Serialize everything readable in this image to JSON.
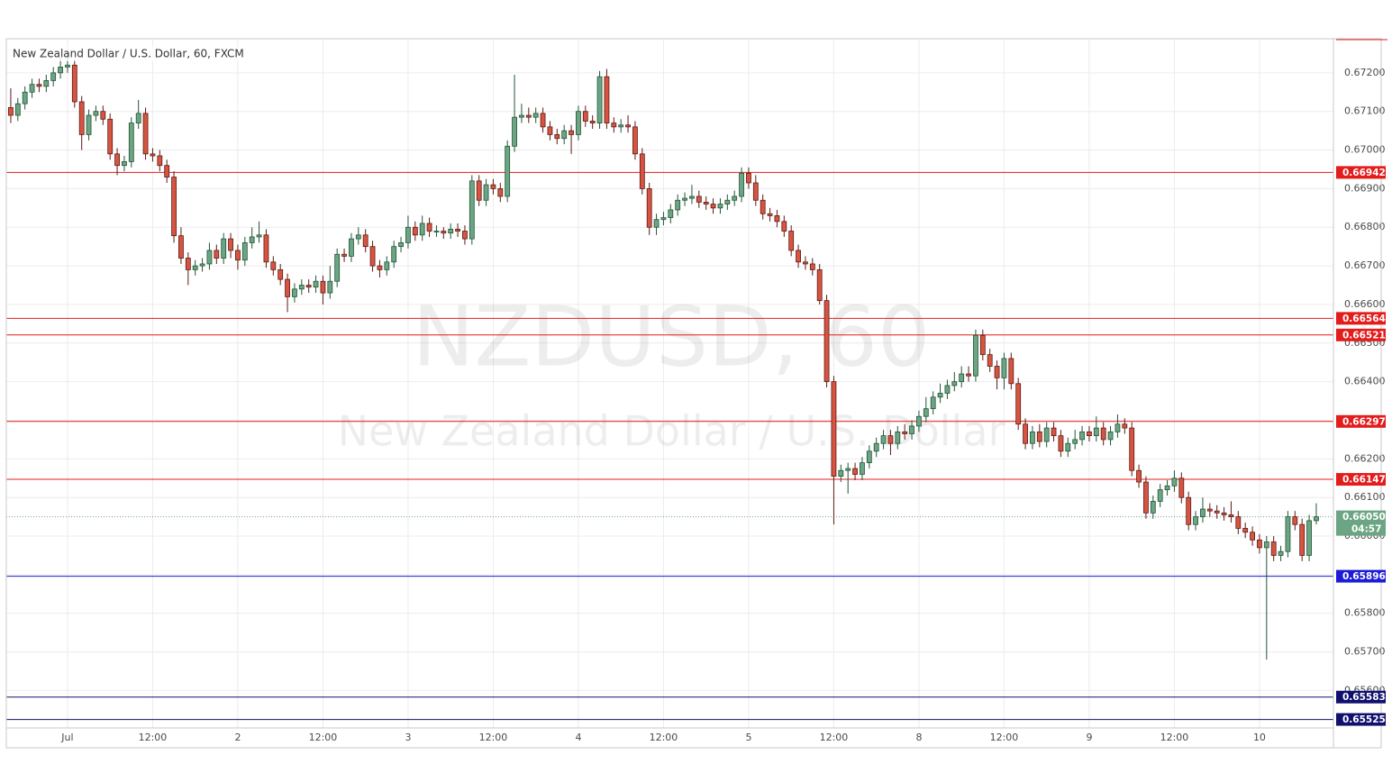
{
  "chart_data": {
    "type": "candlestick",
    "title": "New Zealand Dollar / U.S. Dollar, 60, FXCM",
    "watermark": [
      "NZDUSD, 60",
      "New Zealand Dollar / U.S. Dollar"
    ],
    "up_color": "#6ba583",
    "up_border": "#225437",
    "down_color": "#d75442",
    "down_border": "#5b1a13",
    "grid": true,
    "ylim": [
      0.65503,
      0.67286
    ],
    "yticks": [
      {
        "value": 0.656,
        "label": "0.65600"
      },
      {
        "value": 0.657,
        "label": "0.65700"
      },
      {
        "value": 0.658,
        "label": "0.65800"
      },
      {
        "value": 0.659,
        "label": "0.65900"
      },
      {
        "value": 0.66,
        "label": "0.66000"
      },
      {
        "value": 0.661,
        "label": "0.66100"
      },
      {
        "value": 0.662,
        "label": "0.66200"
      },
      {
        "value": 0.663,
        "label": "0.66300"
      },
      {
        "value": 0.664,
        "label": "0.66400"
      },
      {
        "value": 0.665,
        "label": "0.66500"
      },
      {
        "value": 0.666,
        "label": "0.66600"
      },
      {
        "value": 0.667,
        "label": "0.66700"
      },
      {
        "value": 0.668,
        "label": "0.66800"
      },
      {
        "value": 0.669,
        "label": "0.66900"
      },
      {
        "value": 0.67,
        "label": "0.67000"
      },
      {
        "value": 0.671,
        "label": "0.67100"
      },
      {
        "value": 0.672,
        "label": "0.67200"
      }
    ],
    "hlines": [
      {
        "value": 0.66942,
        "color": "#e31c1c"
      },
      {
        "value": 0.66564,
        "color": "#e31c1c"
      },
      {
        "value": 0.66521,
        "color": "#e31c1c"
      },
      {
        "value": 0.66297,
        "color": "#e31c1c"
      },
      {
        "value": 0.66147,
        "color": "#e31c1c"
      },
      {
        "value": 0.65896,
        "color": "#1c1cd6"
      },
      {
        "value": 0.65583,
        "color": "#10106e"
      },
      {
        "value": 0.65525,
        "color": "#10106e"
      }
    ],
    "last_price": {
      "value": 0.6605,
      "label": "0.66050",
      "color": "#6ba583"
    },
    "countdown": "04:57",
    "categories": [
      null,
      null,
      null,
      null,
      null,
      null,
      null,
      null,
      "Jul",
      null,
      null,
      null,
      null,
      null,
      null,
      null,
      null,
      null,
      null,
      null,
      "12:00",
      null,
      null,
      null,
      null,
      null,
      null,
      null,
      null,
      null,
      null,
      null,
      "2",
      null,
      null,
      null,
      null,
      null,
      null,
      null,
      null,
      null,
      null,
      null,
      "12:00",
      null,
      null,
      null,
      null,
      null,
      null,
      null,
      null,
      null,
      null,
      null,
      "3",
      null,
      null,
      null,
      null,
      null,
      null,
      null,
      null,
      null,
      null,
      null,
      "12:00",
      null,
      null,
      null,
      null,
      null,
      null,
      null,
      null,
      null,
      null,
      null,
      "4",
      null,
      null,
      null,
      null,
      null,
      null,
      null,
      null,
      null,
      null,
      null,
      "12:00",
      null,
      null,
      null,
      null,
      null,
      null,
      null,
      null,
      null,
      null,
      null,
      "5",
      null,
      null,
      null,
      null,
      null,
      null,
      null,
      null,
      null,
      null,
      null,
      "12:00",
      null,
      null,
      null,
      null,
      null,
      null,
      null,
      null,
      null,
      null,
      null,
      "8",
      null,
      null,
      null,
      null,
      null,
      null,
      null,
      null,
      null,
      null,
      null,
      "12:00",
      null,
      null,
      null,
      null,
      null,
      null,
      null,
      null,
      null,
      null,
      null,
      "9",
      null,
      null,
      null,
      null,
      null,
      null,
      null,
      null,
      null,
      null,
      null,
      "12:00",
      null,
      null,
      null,
      null,
      null,
      null,
      null,
      null,
      null,
      null,
      null,
      "10",
      null,
      null,
      null,
      null,
      null,
      null,
      null,
      null
    ],
    "open": [
      0.6711,
      0.6709,
      0.6712,
      0.6715,
      0.6717,
      0.67165,
      0.6718,
      0.672,
      0.67215,
      0.6722,
      0.67125,
      0.6704,
      0.6709,
      0.671,
      0.6708,
      0.6699,
      0.6696,
      0.6697,
      0.6707,
      0.67095,
      0.6699,
      0.66985,
      0.6696,
      0.6693,
      0.66778,
      0.6672,
      0.6669,
      0.667,
      0.66705,
      0.6674,
      0.6672,
      0.6677,
      0.6674,
      0.66715,
      0.6676,
      0.66775,
      0.6678,
      0.6671,
      0.6669,
      0.66665,
      0.6662,
      0.6664,
      0.6665,
      0.66645,
      0.6666,
      0.6663,
      0.6666,
      0.6673,
      0.66725,
      0.6677,
      0.6678,
      0.6675,
      0.667,
      0.6669,
      0.6671,
      0.6675,
      0.6676,
      0.668,
      0.6678,
      0.6681,
      0.6679,
      0.6679,
      0.66785,
      0.66795,
      0.6679,
      0.6677,
      0.6692,
      0.6687,
      0.6691,
      0.669,
      0.6688,
      0.6701,
      0.67085,
      0.6709,
      0.67085,
      0.67095,
      0.6706,
      0.6704,
      0.6703,
      0.6705,
      0.6704,
      0.671,
      0.67075,
      0.6707,
      0.6719,
      0.6707,
      0.6706,
      0.67065,
      0.6706,
      0.6699,
      0.669,
      0.668,
      0.6682,
      0.66825,
      0.66845,
      0.6687,
      0.66875,
      0.6688,
      0.66865,
      0.6686,
      0.6685,
      0.6686,
      0.6687,
      0.6688,
      0.6694,
      0.66915,
      0.6687,
      0.66835,
      0.6683,
      0.66815,
      0.6679,
      0.6674,
      0.6671,
      0.66705,
      0.6669,
      0.6661,
      0.664,
      0.66155,
      0.6617,
      0.66175,
      0.6616,
      0.6619,
      0.6622,
      0.6624,
      0.6626,
      0.6624,
      0.6627,
      0.66265,
      0.66285,
      0.6631,
      0.6633,
      0.6636,
      0.6637,
      0.6639,
      0.664,
      0.6642,
      0.66415,
      0.6652,
      0.6647,
      0.6644,
      0.6641,
      0.6646,
      0.66395,
      0.6629,
      0.6624,
      0.6627,
      0.66245,
      0.6628,
      0.6626,
      0.6622,
      0.6624,
      0.6625,
      0.6627,
      0.6626,
      0.6628,
      0.6625,
      0.6627,
      0.6629,
      0.6628,
      0.6617,
      0.6614,
      0.6606,
      0.6609,
      0.6612,
      0.6613,
      0.6615,
      0.661,
      0.6603,
      0.6605,
      0.6607,
      0.66065,
      0.6606,
      0.66055,
      0.6605,
      0.6602,
      0.6601,
      0.6599,
      0.6597,
      0.65985,
      0.6595,
      0.6596,
      0.6605,
      0.6603,
      0.6595,
      0.6604
    ],
    "high": [
      0.6716,
      0.67135,
      0.67165,
      0.67185,
      0.67185,
      0.67195,
      0.67215,
      0.6724,
      0.6726,
      0.67235,
      0.6714,
      0.67105,
      0.67115,
      0.67115,
      0.67095,
      0.67005,
      0.66985,
      0.67085,
      0.6713,
      0.6711,
      0.67005,
      0.67,
      0.66975,
      0.66945,
      0.668,
      0.66735,
      0.66715,
      0.6672,
      0.6676,
      0.66755,
      0.66785,
      0.66785,
      0.66755,
      0.66775,
      0.668,
      0.66815,
      0.66795,
      0.66725,
      0.66705,
      0.6668,
      0.66655,
      0.66665,
      0.66665,
      0.66675,
      0.66675,
      0.667,
      0.66745,
      0.66745,
      0.66785,
      0.668,
      0.66795,
      0.66765,
      0.66715,
      0.66725,
      0.66765,
      0.66775,
      0.6683,
      0.66815,
      0.6683,
      0.66825,
      0.66805,
      0.668,
      0.6681,
      0.6681,
      0.66805,
      0.66935,
      0.66935,
      0.66925,
      0.66925,
      0.66915,
      0.67025,
      0.67195,
      0.6712,
      0.6711,
      0.6711,
      0.6711,
      0.67075,
      0.67055,
      0.67065,
      0.67065,
      0.67115,
      0.67115,
      0.6709,
      0.67205,
      0.6721,
      0.67085,
      0.6708,
      0.6709,
      0.67075,
      0.67005,
      0.66915,
      0.66835,
      0.6684,
      0.6686,
      0.66885,
      0.6689,
      0.6691,
      0.66895,
      0.6688,
      0.66875,
      0.66875,
      0.66885,
      0.66895,
      0.66955,
      0.66955,
      0.66935,
      0.66885,
      0.6685,
      0.66845,
      0.6683,
      0.66805,
      0.66755,
      0.66725,
      0.6672,
      0.66705,
      0.66625,
      0.66415,
      0.66185,
      0.6619,
      0.6619,
      0.66205,
      0.66235,
      0.66255,
      0.66275,
      0.66275,
      0.66285,
      0.6629,
      0.663,
      0.66325,
      0.6636,
      0.66375,
      0.66395,
      0.66405,
      0.66425,
      0.6644,
      0.6644,
      0.66535,
      0.66535,
      0.66485,
      0.66455,
      0.66475,
      0.66475,
      0.6641,
      0.66305,
      0.66285,
      0.6629,
      0.66295,
      0.66295,
      0.66275,
      0.66255,
      0.66275,
      0.66285,
      0.66285,
      0.6631,
      0.66295,
      0.66285,
      0.66315,
      0.66305,
      0.66295,
      0.66185,
      0.66155,
      0.66105,
      0.66135,
      0.66145,
      0.6617,
      0.66165,
      0.66115,
      0.66065,
      0.661,
      0.66085,
      0.6608,
      0.66075,
      0.6609,
      0.66065,
      0.66035,
      0.66025,
      0.66005,
      0.66,
      0.66,
      0.65975,
      0.66065,
      0.66065,
      0.66045,
      0.66055,
      0.66085
    ],
    "low": [
      0.6707,
      0.67075,
      0.67105,
      0.67135,
      0.6715,
      0.6715,
      0.67165,
      0.67185,
      0.672,
      0.6711,
      0.67,
      0.67025,
      0.67075,
      0.67065,
      0.66975,
      0.66935,
      0.66945,
      0.66955,
      0.67055,
      0.66975,
      0.6697,
      0.66945,
      0.66915,
      0.6676,
      0.66705,
      0.6665,
      0.66675,
      0.66685,
      0.6669,
      0.66705,
      0.66705,
      0.6672,
      0.6669,
      0.667,
      0.66745,
      0.6676,
      0.66695,
      0.66675,
      0.6665,
      0.6658,
      0.66605,
      0.66625,
      0.6663,
      0.6663,
      0.666,
      0.66615,
      0.66645,
      0.6671,
      0.6671,
      0.66755,
      0.66735,
      0.66685,
      0.6667,
      0.66675,
      0.66695,
      0.66735,
      0.66745,
      0.66765,
      0.66765,
      0.66775,
      0.66775,
      0.6677,
      0.6677,
      0.66775,
      0.66755,
      0.66755,
      0.66855,
      0.66855,
      0.66885,
      0.66865,
      0.66865,
      0.66995,
      0.6707,
      0.6707,
      0.6707,
      0.67045,
      0.67025,
      0.67015,
      0.67015,
      0.6699,
      0.67025,
      0.6706,
      0.67055,
      0.67055,
      0.67055,
      0.67045,
      0.67045,
      0.67045,
      0.66975,
      0.66885,
      0.6678,
      0.6678,
      0.66805,
      0.6681,
      0.6683,
      0.66855,
      0.6686,
      0.6685,
      0.66845,
      0.66835,
      0.66835,
      0.66845,
      0.66855,
      0.66865,
      0.669,
      0.66855,
      0.6682,
      0.66815,
      0.668,
      0.66775,
      0.66725,
      0.66695,
      0.6669,
      0.66675,
      0.666,
      0.66385,
      0.6603,
      0.6614,
      0.6611,
      0.66145,
      0.66145,
      0.66175,
      0.66205,
      0.66225,
      0.6621,
      0.66225,
      0.6625,
      0.6625,
      0.6627,
      0.66295,
      0.66315,
      0.66345,
      0.66355,
      0.66375,
      0.66385,
      0.664,
      0.664,
      0.66455,
      0.66425,
      0.6638,
      0.6638,
      0.6638,
      0.66275,
      0.66225,
      0.66225,
      0.6623,
      0.6623,
      0.66245,
      0.66205,
      0.66205,
      0.66225,
      0.66235,
      0.66245,
      0.66245,
      0.66235,
      0.66235,
      0.66255,
      0.66265,
      0.66155,
      0.66125,
      0.66045,
      0.66045,
      0.66075,
      0.66105,
      0.66115,
      0.66085,
      0.66015,
      0.66015,
      0.66035,
      0.6605,
      0.66045,
      0.6604,
      0.66035,
      0.66005,
      0.65995,
      0.65975,
      0.65955,
      0.6568,
      0.65935,
      0.65935,
      0.65945,
      0.66015,
      0.65935,
      0.65935,
      0.6603
    ],
    "close": [
      0.6709,
      0.6712,
      0.6715,
      0.6717,
      0.67165,
      0.6718,
      0.672,
      0.67215,
      0.6722,
      0.67125,
      0.6704,
      0.6709,
      0.671,
      0.6708,
      0.6699,
      0.6696,
      0.6697,
      0.6707,
      0.67095,
      0.6699,
      0.66985,
      0.6696,
      0.6693,
      0.66778,
      0.6672,
      0.6669,
      0.667,
      0.66705,
      0.6674,
      0.6672,
      0.6677,
      0.6674,
      0.66715,
      0.6676,
      0.66775,
      0.6678,
      0.6671,
      0.6669,
      0.66665,
      0.6662,
      0.6664,
      0.6665,
      0.66645,
      0.6666,
      0.6663,
      0.6666,
      0.6673,
      0.66725,
      0.6677,
      0.6678,
      0.6675,
      0.667,
      0.6669,
      0.6671,
      0.6675,
      0.6676,
      0.668,
      0.6678,
      0.6681,
      0.6679,
      0.6679,
      0.66785,
      0.66795,
      0.6679,
      0.6677,
      0.6692,
      0.6687,
      0.6691,
      0.669,
      0.6688,
      0.6701,
      0.67085,
      0.6709,
      0.67085,
      0.67095,
      0.6706,
      0.6704,
      0.6703,
      0.6705,
      0.6704,
      0.671,
      0.67075,
      0.6707,
      0.6719,
      0.6707,
      0.6706,
      0.67065,
      0.6706,
      0.6699,
      0.669,
      0.668,
      0.6682,
      0.66825,
      0.66845,
      0.6687,
      0.66875,
      0.6688,
      0.66865,
      0.6686,
      0.6685,
      0.6686,
      0.6687,
      0.6688,
      0.6694,
      0.66915,
      0.6687,
      0.66835,
      0.6683,
      0.66815,
      0.6679,
      0.6674,
      0.6671,
      0.66705,
      0.6669,
      0.6661,
      0.664,
      0.66155,
      0.6617,
      0.66175,
      0.6616,
      0.6619,
      0.6622,
      0.6624,
      0.6626,
      0.6624,
      0.6627,
      0.66265,
      0.66285,
      0.6631,
      0.6633,
      0.6636,
      0.6637,
      0.6639,
      0.664,
      0.6642,
      0.66415,
      0.6652,
      0.6647,
      0.6644,
      0.6641,
      0.6646,
      0.66395,
      0.6629,
      0.6624,
      0.6627,
      0.66245,
      0.6628,
      0.6626,
      0.6622,
      0.6624,
      0.6625,
      0.6627,
      0.6626,
      0.6628,
      0.6625,
      0.6627,
      0.6629,
      0.6628,
      0.6617,
      0.6614,
      0.6606,
      0.6609,
      0.6612,
      0.6613,
      0.6615,
      0.661,
      0.6603,
      0.6605,
      0.6607,
      0.66065,
      0.6606,
      0.66055,
      0.6605,
      0.6602,
      0.6601,
      0.6599,
      0.6597,
      0.65985,
      0.6595,
      0.6596,
      0.6605,
      0.6603,
      0.6595,
      0.6604,
      0.6605
    ]
  }
}
